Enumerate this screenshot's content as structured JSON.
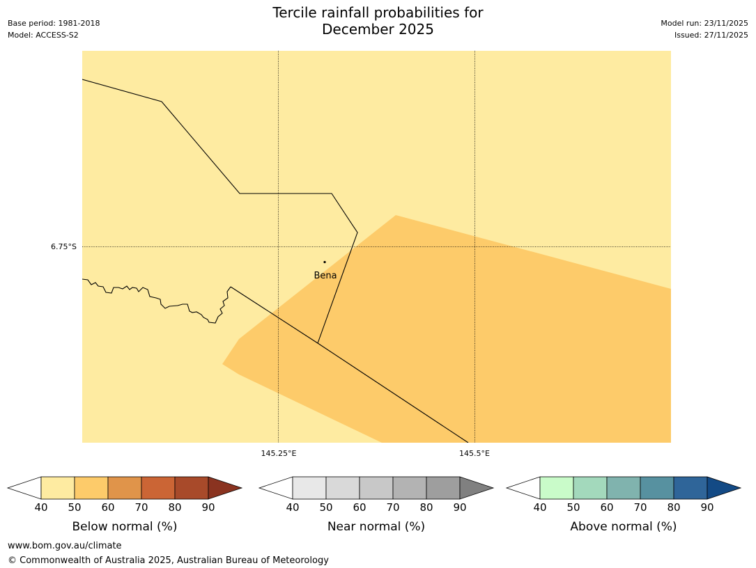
{
  "title": {
    "line1": "Tercile rainfall probabilities for",
    "line2": "December 2025"
  },
  "meta": {
    "base_period": "Base period: 1981-2018",
    "model": "Model: ACCESS-S2",
    "model_run": "Model run: 23/11/2025",
    "issued": "Issued: 27/11/2025"
  },
  "map": {
    "place_label": "Bena",
    "lat_label": "6.75°S",
    "lon_labels": [
      "145.25°E",
      "145.5°E"
    ],
    "fill_colors": {
      "background": "#feeba1",
      "band_50_60": "#fdcb6a"
    }
  },
  "colorbars": [
    {
      "label": "Below normal (%)",
      "ticks": [
        "40",
        "50",
        "60",
        "70",
        "80",
        "90"
      ],
      "colors": [
        "#ffffff",
        "#feeba1",
        "#fdcb6a",
        "#e0944a",
        "#cb6535",
        "#a84a2a",
        "#8a3320"
      ]
    },
    {
      "label": "Near normal (%)",
      "ticks": [
        "40",
        "50",
        "60",
        "70",
        "80",
        "90"
      ],
      "colors": [
        "#ffffff",
        "#e8e8e8",
        "#d9d9d9",
        "#c8c8c8",
        "#b3b3b3",
        "#9e9e9e",
        "#808080"
      ]
    },
    {
      "label": "Above normal (%)",
      "ticks": [
        "40",
        "50",
        "60",
        "70",
        "80",
        "90"
      ],
      "colors": [
        "#ffffff",
        "#c9fbc9",
        "#a3d9bc",
        "#80b3ae",
        "#5791a0",
        "#2f6599",
        "#134a85"
      ]
    }
  ],
  "footer": {
    "url": "www.bom.gov.au/climate",
    "copyright": "© Commonwealth of Australia 2025, Australian Bureau of Meteorology"
  }
}
